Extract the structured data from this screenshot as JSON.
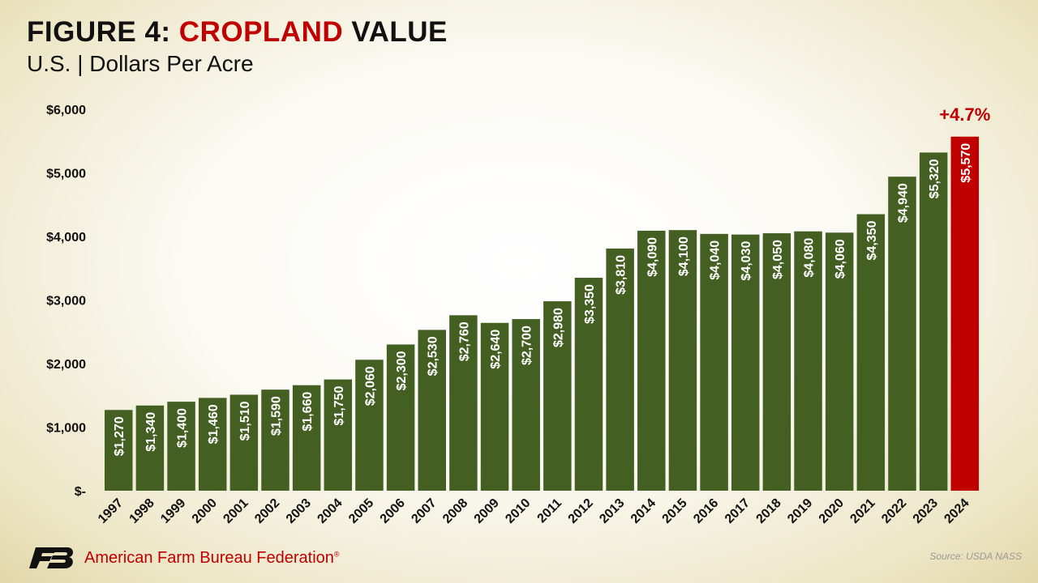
{
  "header": {
    "title_prefix": "FIGURE 4: ",
    "title_highlight": "CROPLAND",
    "title_suffix": " VALUE",
    "subtitle": "U.S. | Dollars Per Acre"
  },
  "footer": {
    "org_name": "American Farm Bureau Federation",
    "registered_mark": "®",
    "source": "Source: USDA NASS",
    "logo_icon": "afbf-fb-logo-icon"
  },
  "colors": {
    "bar": "#445f22",
    "highlight_bar": "#c00000",
    "title_highlight": "#c00000",
    "text": "#111111"
  },
  "chart_data": {
    "type": "bar",
    "categories": [
      "1997",
      "1998",
      "1999",
      "2000",
      "2001",
      "2002",
      "2003",
      "2004",
      "2005",
      "2006",
      "2007",
      "2008",
      "2009",
      "2010",
      "2011",
      "2012",
      "2013",
      "2014",
      "2015",
      "2016",
      "2017",
      "2018",
      "2019",
      "2020",
      "2021",
      "2022",
      "2023",
      "2024"
    ],
    "values": [
      1270,
      1340,
      1400,
      1460,
      1510,
      1590,
      1660,
      1750,
      2060,
      2300,
      2530,
      2760,
      2640,
      2700,
      2980,
      3350,
      3810,
      4090,
      4100,
      4040,
      4030,
      4050,
      4080,
      4060,
      4350,
      4940,
      5320,
      5570
    ],
    "data_labels": [
      "$1,270",
      "$1,340",
      "$1,400",
      "$1,460",
      "$1,510",
      "$1,590",
      "$1,660",
      "$1,750",
      "$2,060",
      "$2,300",
      "$2,530",
      "$2,760",
      "$2,640",
      "$2,700",
      "$2,980",
      "$3,350",
      "$3,810",
      "$4,090",
      "$4,100",
      "$4,040",
      "$4,030",
      "$4,050",
      "$4,080",
      "$4,060",
      "$4,350",
      "$4,940",
      "$5,320",
      "$5,570"
    ],
    "ylim": [
      0,
      6000
    ],
    "yticks": [
      0,
      1000,
      2000,
      3000,
      4000,
      5000,
      6000
    ],
    "ytick_labels": [
      "$-",
      "$1,000",
      "$2,000",
      "$3,000",
      "$4,000",
      "$5,000",
      "$6,000"
    ],
    "highlight_index": 27,
    "annotation": "+4.7%",
    "grid": false,
    "xlabel": "",
    "ylabel": ""
  }
}
